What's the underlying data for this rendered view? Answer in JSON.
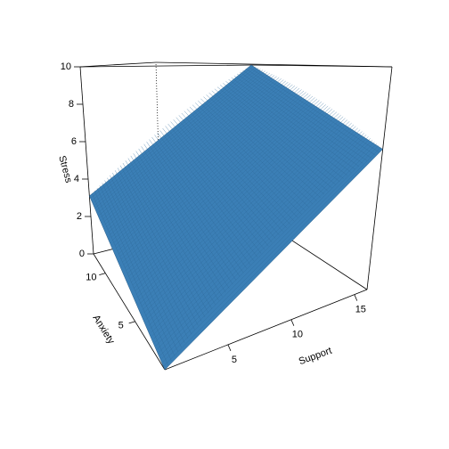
{
  "chart_data": {
    "type": "surface",
    "x_label": "Support",
    "y_label": "Anxiety",
    "z_label": "Stress",
    "x": [
      0,
      16
    ],
    "y": [
      0,
      12
    ],
    "z": [
      [
        0,
        6.3
      ],
      [
        3.1,
        10
      ]
    ],
    "xlim": [
      0,
      16
    ],
    "ylim": [
      0,
      12
    ],
    "zlim": [
      0,
      10
    ],
    "xticks": [
      5,
      10,
      15
    ],
    "yticks": [
      5,
      10
    ],
    "zticks": [
      0,
      2,
      4,
      6,
      8,
      10
    ],
    "color": "#3b7fb6"
  }
}
